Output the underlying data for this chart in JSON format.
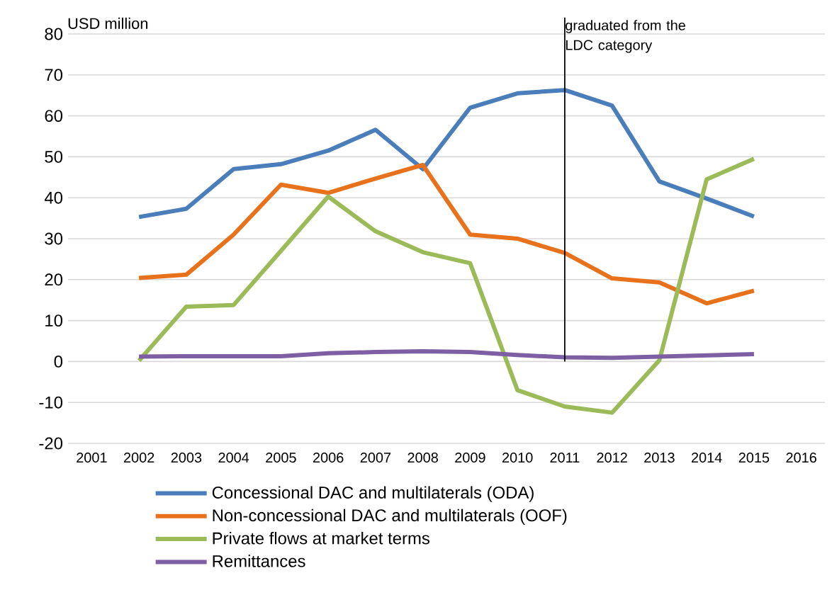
{
  "chart_data": {
    "type": "line",
    "ylabel": "USD million",
    "categories": [
      "2001",
      "2002",
      "2003",
      "2004",
      "2005",
      "2006",
      "2007",
      "2008",
      "2009",
      "2010",
      "2011",
      "2012",
      "2013",
      "2014",
      "2015",
      "2016"
    ],
    "series": [
      {
        "name": "Concessional DAC and multilaterals (ODA)",
        "color": "#4a7ebb",
        "values": [
          null,
          35.3,
          37.3,
          47,
          48.2,
          51.5,
          56.6,
          47,
          62,
          65.5,
          66.3,
          62.5,
          44,
          39.8,
          35.4,
          null
        ]
      },
      {
        "name": "Non-concessional DAC and multilaterals (OOF)",
        "color": "#e8711c",
        "values": [
          null,
          20.4,
          21.2,
          31,
          43.2,
          41.2,
          44.7,
          48,
          31,
          30,
          26.5,
          20.3,
          19.3,
          14.2,
          17.3,
          null
        ]
      },
      {
        "name": "Private flows at market terms",
        "color": "#9bbb59",
        "values": [
          null,
          0.2,
          13.4,
          13.8,
          27,
          40.3,
          31.8,
          26.7,
          24,
          -7,
          -11,
          -12.5,
          0.3,
          44.5,
          49.5,
          null
        ]
      },
      {
        "name": "Remittances",
        "color": "#7f5fa3",
        "values": [
          null,
          1.2,
          1.3,
          1.3,
          1.3,
          2,
          2.3,
          2.5,
          2.3,
          1.6,
          1.0,
          0.9,
          1.2,
          1.5,
          1.8,
          null
        ]
      }
    ],
    "ylim": [
      -20,
      80
    ],
    "yticks": [
      -20,
      -10,
      0,
      10,
      20,
      30,
      40,
      50,
      60,
      70,
      80
    ],
    "grid": "y",
    "legend": "bottom",
    "marker": "none",
    "line_style": "solid",
    "ref_lines": [
      {
        "axis": "x",
        "value": "2011",
        "label": "graduated from the LDC category",
        "color": "#000000"
      }
    ]
  }
}
